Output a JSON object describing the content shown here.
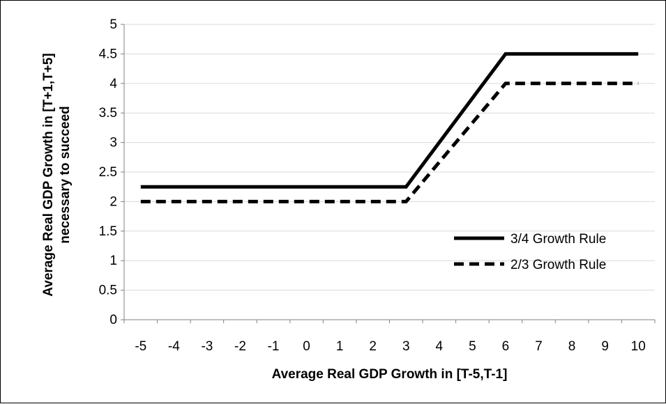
{
  "chart_data": {
    "type": "line",
    "title": "",
    "xlabel": "Average Real GDP Growth in [T-5,T-1]",
    "ylabel_line1": "Average Real GDP Growth in [T+1,T+5]",
    "ylabel_line2": "necessary to succeed",
    "categories": [
      "-5",
      "-4",
      "-3",
      "-2",
      "-1",
      "0",
      "1",
      "2",
      "3",
      "4",
      "5",
      "6",
      "7",
      "8",
      "9",
      "10"
    ],
    "ylim": [
      0,
      5
    ],
    "yticks": [
      "0",
      "0.5",
      "1",
      "1.5",
      "2",
      "2.5",
      "3",
      "3.5",
      "4",
      "4.5",
      "5"
    ],
    "grid": "horizontal",
    "legend_position": "right",
    "series": [
      {
        "name": "3/4 Growth Rule",
        "style": "solid",
        "color": "#000000",
        "values": [
          2.25,
          2.25,
          2.25,
          2.25,
          2.25,
          2.25,
          2.25,
          2.25,
          2.25,
          3.0,
          3.75,
          4.5,
          4.5,
          4.5,
          4.5,
          4.5
        ]
      },
      {
        "name": "2/3 Growth Rule",
        "style": "dashed",
        "color": "#000000",
        "values": [
          2.0,
          2.0,
          2.0,
          2.0,
          2.0,
          2.0,
          2.0,
          2.0,
          2.0,
          2.6667,
          3.3333,
          4.0,
          4.0,
          4.0,
          4.0,
          4.0
        ]
      }
    ]
  }
}
